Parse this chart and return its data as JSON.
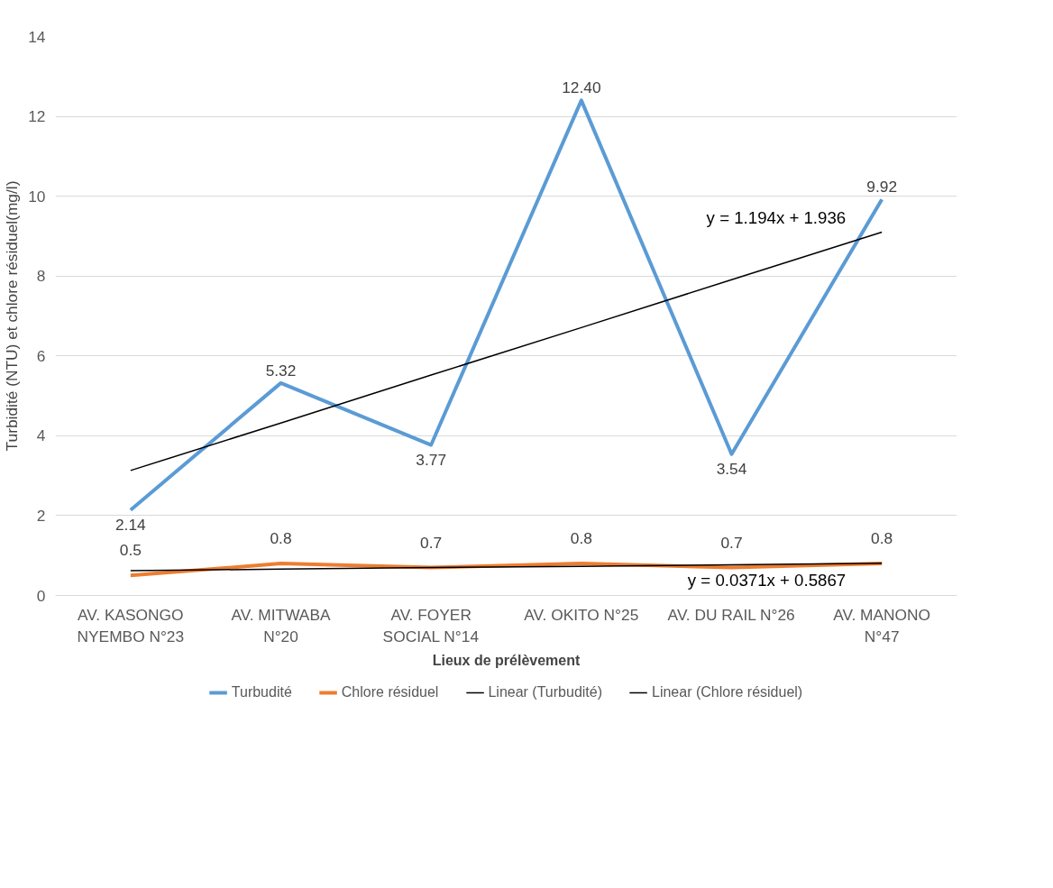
{
  "chart_data": {
    "type": "line",
    "xlabel": "Lieux de prélèvement",
    "ylabel": "Turbidité (NTU) et chlore résiduel(mg/l)",
    "categories": [
      "AV. KASONGO\nNYEMBO N°23",
      "AV. MITWABA\nN°20",
      "AV. FOYER\nSOCIAL N°14",
      "AV. OKITO N°25",
      "AV. DU RAIL N°26",
      "AV. MANONO\nN°47"
    ],
    "series": [
      {
        "name": "Turbudité",
        "color": "#5b9bd5",
        "values": [
          2.14,
          5.32,
          3.77,
          12.4,
          3.54,
          9.92
        ],
        "value_labels": [
          "2.14",
          "5.32",
          "3.77",
          "12.40",
          "3.54",
          "9.92"
        ]
      },
      {
        "name": "Chlore résiduel",
        "color": "#ed7d31",
        "values": [
          0.5,
          0.8,
          0.7,
          0.8,
          0.7,
          0.8
        ],
        "value_labels": [
          "0.5",
          "0.8",
          "0.7",
          "0.8",
          "0.7",
          "0.8"
        ]
      },
      {
        "name": "Linear (Turbudité)",
        "color": "#000000",
        "values": [
          3.13,
          4.32,
          5.52,
          6.71,
          7.91,
          9.1
        ]
      },
      {
        "name": "Linear (Chlore résiduel)",
        "color": "#000000",
        "values": [
          0.62,
          0.66,
          0.7,
          0.73,
          0.77,
          0.81
        ]
      }
    ],
    "annotations": [
      "y = 1.194x + 1.936",
      "y = 0.0371x + 0.5867"
    ],
    "ylim": [
      0,
      14
    ],
    "yticks": [
      0,
      2,
      4,
      6,
      8,
      10,
      12,
      14
    ],
    "grid": "y",
    "legend": "bottom",
    "marker": "none",
    "line_style": "solid"
  }
}
